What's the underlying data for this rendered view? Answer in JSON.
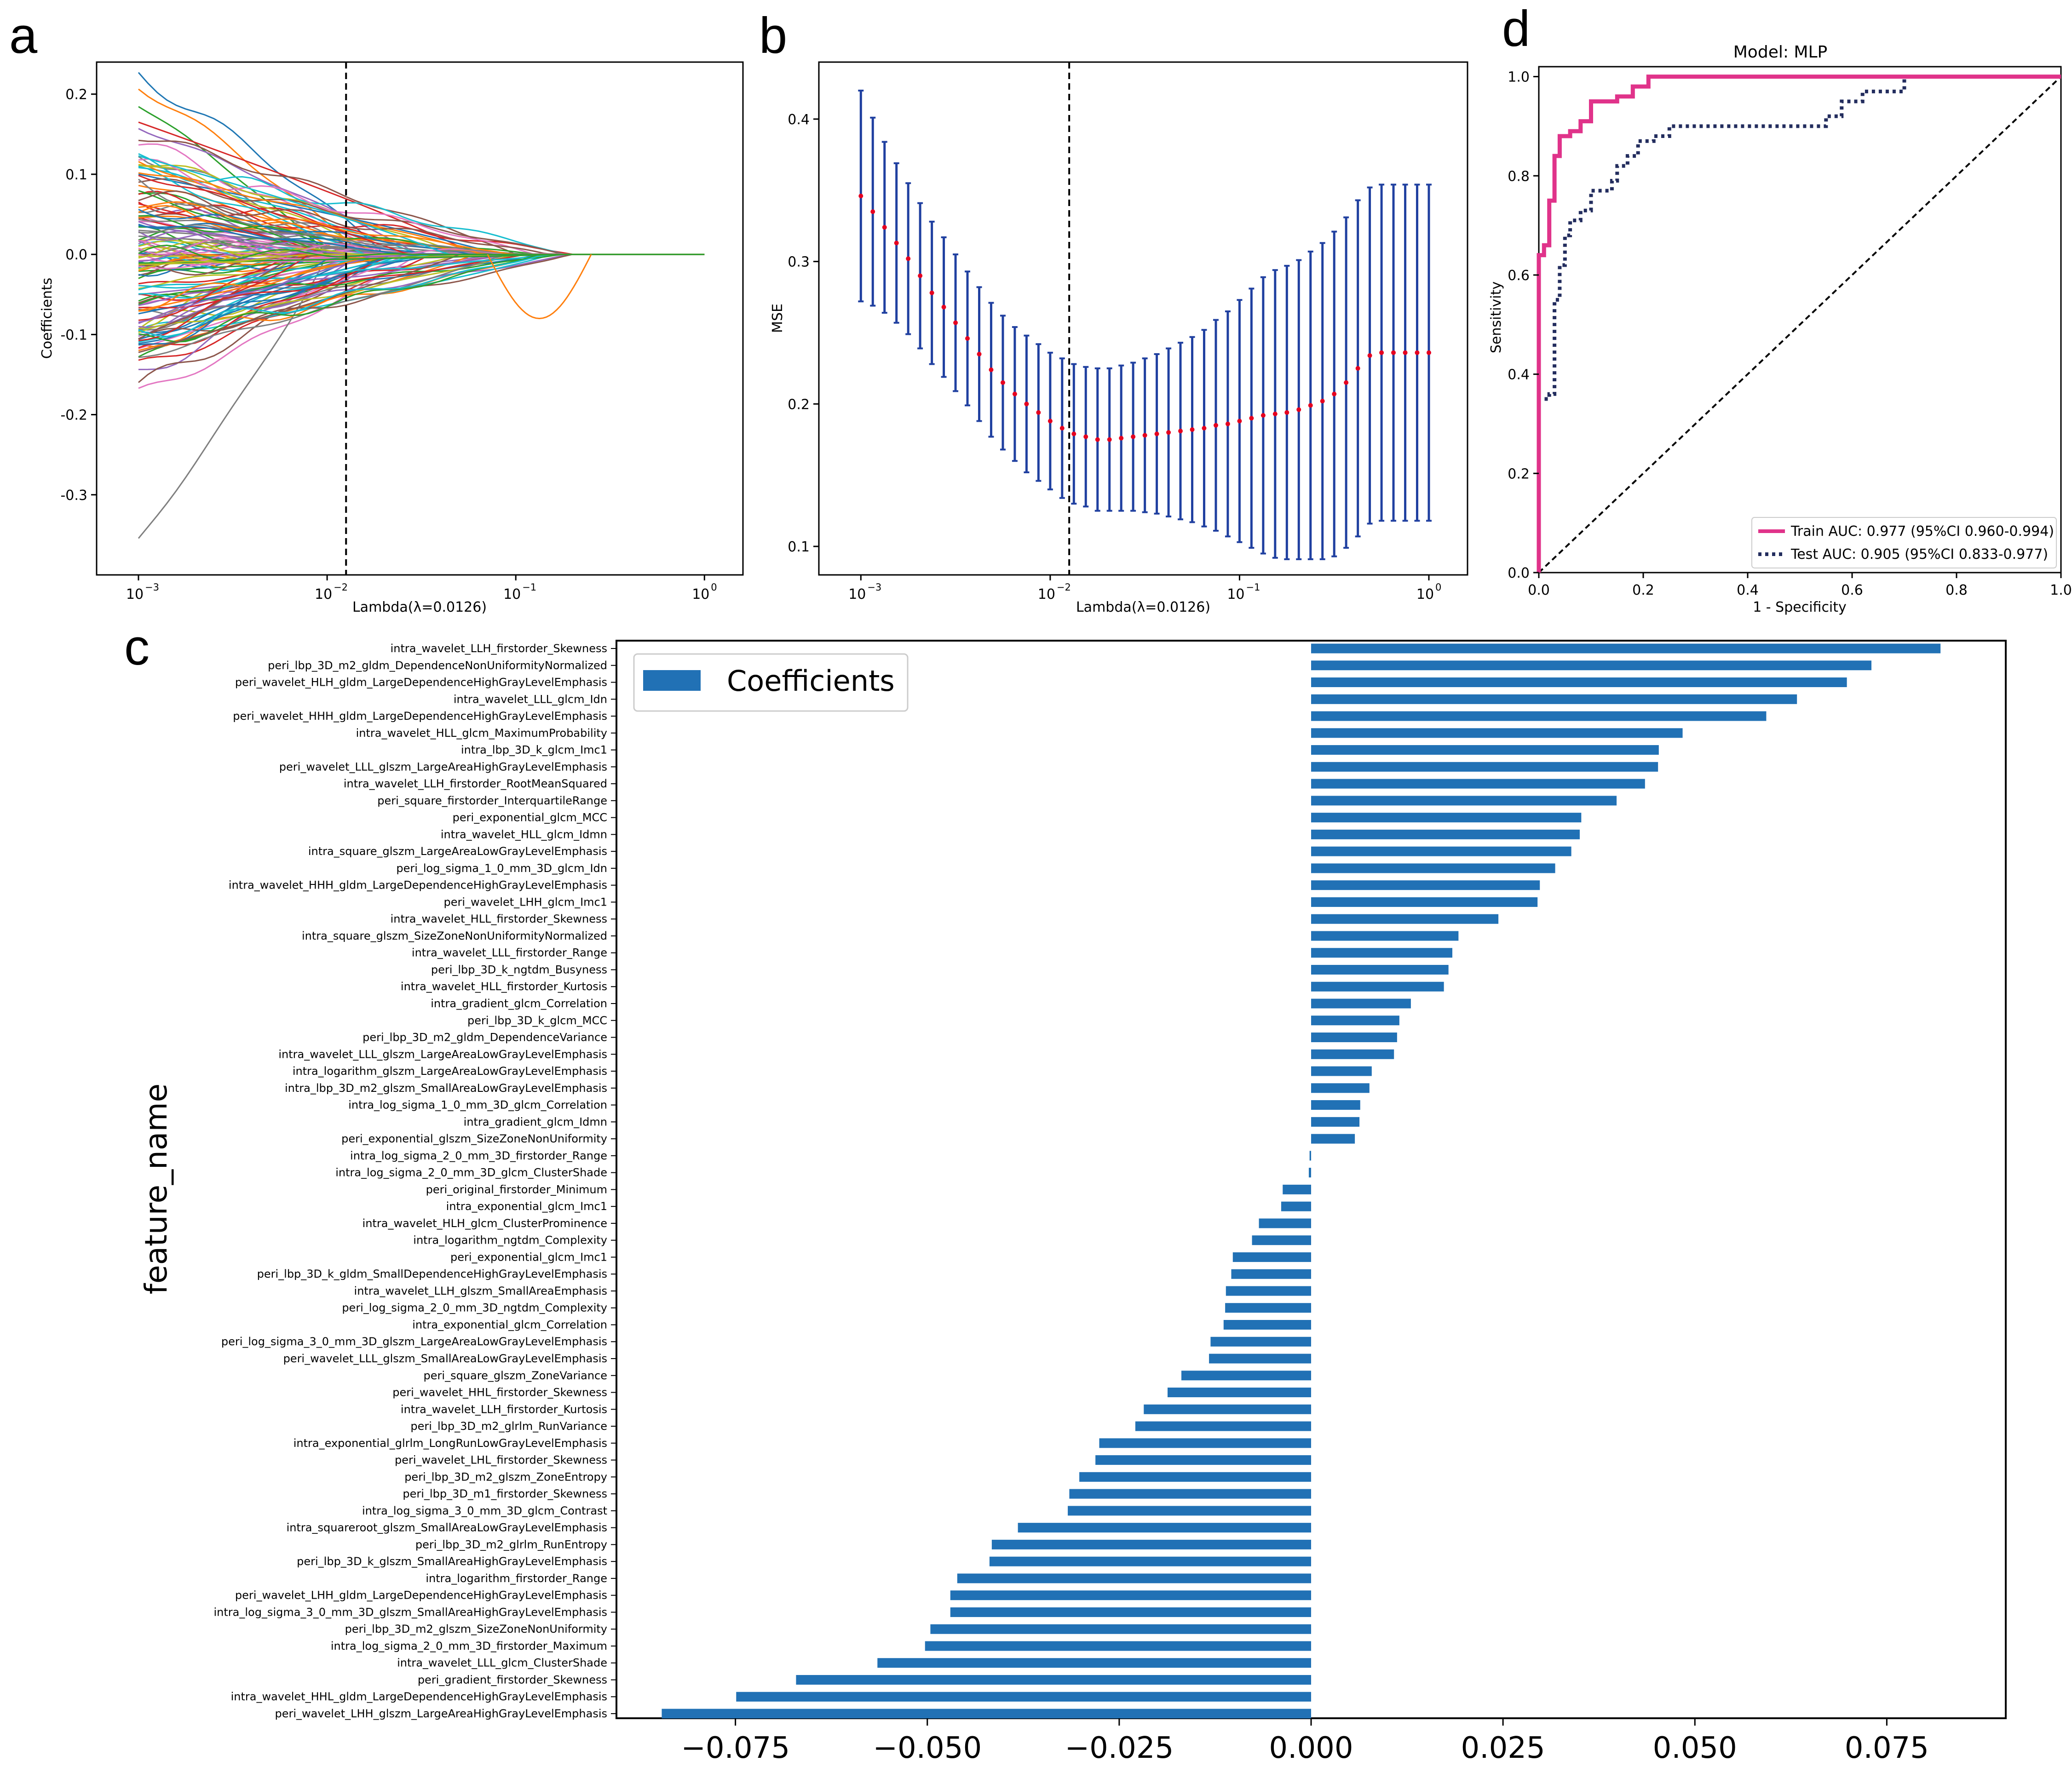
{
  "panel_labels": {
    "a": "a",
    "b": "b",
    "c": "c",
    "d": "d"
  },
  "colors": {
    "bar": "#2171b5",
    "train": "#e0338a",
    "test": "#232d5e",
    "errorbar": "#2040a0",
    "point": "#e6001f"
  },
  "chart_data": [
    {
      "id": "a",
      "type": "line",
      "title": "",
      "xlabel": "Lambda(λ=0.0126)",
      "ylabel": "Coefficients",
      "xscale": "log",
      "xlim": [
        0.0006,
        1.6
      ],
      "ylim": [
        -0.4,
        0.24
      ],
      "x_ticks": [
        {
          "v": 0.001,
          "b": "10",
          "e": "−3"
        },
        {
          "v": 0.01,
          "b": "10",
          "e": "−2"
        },
        {
          "v": 0.1,
          "b": "10",
          "e": "−1"
        },
        {
          "v": 1,
          "b": "10",
          "e": "0"
        }
      ],
      "y_ticks": [
        {
          "v": 0.2,
          "label": "0.2"
        },
        {
          "v": 0.1,
          "label": "0.1"
        },
        {
          "v": 0.0,
          "label": "0.0"
        },
        {
          "v": -0.1,
          "label": "-0.1"
        },
        {
          "v": -0.2,
          "label": "-0.2"
        },
        {
          "v": -0.3,
          "label": "-0.3"
        }
      ],
      "vline": 0.0126,
      "note": "coefficient paths for ~130 features shrinking to zero; first values listed, all reach 0 near lambda 0.1-0.25",
      "series": [
        {
          "start": 0.227,
          "zero": 0.02
        },
        {
          "start": 0.213,
          "zero": 0.015
        },
        {
          "start": 0.188,
          "zero": 0.01
        },
        {
          "start": 0.165,
          "zero": 0.06
        },
        {
          "start": 0.16,
          "zero": 0.03
        },
        {
          "start": 0.15,
          "zero": 0.1
        },
        {
          "start": 0.14,
          "zero": 0.02
        },
        {
          "start": 0.13,
          "zero": 0.015
        },
        {
          "start": 0.12,
          "zero": 0.05
        },
        {
          "start": 0.11,
          "zero": 0.03
        },
        {
          "start": 0.1,
          "zero": 0.08
        },
        {
          "start": 0.09,
          "zero": 0.02
        },
        {
          "start": 0.08,
          "zero": 0.013
        },
        {
          "start": 0.07,
          "zero": 0.2
        },
        {
          "start": 0.06,
          "zero": 0.02
        },
        {
          "start": 0.05,
          "zero": 0.03
        },
        {
          "start": 0.04,
          "zero": 0.01
        },
        {
          "start": 0.03,
          "zero": 0.06
        },
        {
          "start": 0.02,
          "zero": 0.015
        },
        {
          "start": 0.01,
          "zero": 0.025
        },
        {
          "start": -0.01,
          "zero": 0.02
        },
        {
          "start": -0.02,
          "zero": 0.04
        },
        {
          "start": -0.03,
          "zero": 0.012
        },
        {
          "start": -0.04,
          "zero": 0.025
        },
        {
          "start": -0.05,
          "zero": 0.08
        },
        {
          "start": -0.06,
          "zero": 0.02
        },
        {
          "start": -0.07,
          "zero": 0.015
        },
        {
          "start": -0.08,
          "zero": 0.03
        },
        {
          "start": -0.09,
          "zero": 0.05
        },
        {
          "start": -0.1,
          "zero": 0.025
        },
        {
          "start": -0.11,
          "zero": 0.015
        },
        {
          "start": -0.12,
          "zero": 0.06
        },
        {
          "start": -0.13,
          "zero": 0.02
        },
        {
          "start": -0.14,
          "zero": 0.035
        },
        {
          "start": -0.15,
          "zero": 0.015
        },
        {
          "start": -0.165,
          "zero": 0.02
        },
        {
          "start": -0.175,
          "zero": 0.03
        },
        {
          "start": -0.357,
          "zero": 0.01
        }
      ]
    },
    {
      "id": "b",
      "type": "scatter",
      "title": "",
      "xlabel": "Lambda(λ=0.0126)",
      "ylabel": "MSE",
      "xscale": "log",
      "xlim": [
        0.0006,
        1.6
      ],
      "ylim": [
        0.08,
        0.44
      ],
      "x_ticks": [
        {
          "v": 0.001,
          "b": "10",
          "e": "−3"
        },
        {
          "v": 0.01,
          "b": "10",
          "e": "−2"
        },
        {
          "v": 0.1,
          "b": "10",
          "e": "−1"
        },
        {
          "v": 1,
          "b": "10",
          "e": "0"
        }
      ],
      "y_ticks": [
        {
          "v": 0.4,
          "label": "0.4"
        },
        {
          "v": 0.3,
          "label": "0.3"
        },
        {
          "v": 0.2,
          "label": "0.2"
        },
        {
          "v": 0.1,
          "label": "0.1"
        }
      ],
      "vline": 0.0126,
      "log_lambda": [
        -3.0,
        -2.937,
        -2.875,
        -2.812,
        -2.75,
        -2.687,
        -2.625,
        -2.562,
        -2.5,
        -2.437,
        -2.375,
        -2.312,
        -2.25,
        -2.187,
        -2.125,
        -2.062,
        -2.0,
        -1.937,
        -1.875,
        -1.812,
        -1.75,
        -1.687,
        -1.625,
        -1.562,
        -1.5,
        -1.437,
        -1.375,
        -1.312,
        -1.25,
        -1.187,
        -1.125,
        -1.062,
        -1.0,
        -0.937,
        -0.875,
        -0.812,
        -0.75,
        -0.687,
        -0.625,
        -0.562,
        -0.5,
        -0.437,
        -0.375,
        -0.312,
        -0.25,
        -0.187,
        -0.125,
        -0.062,
        0.0
      ],
      "mse": [
        0.346,
        0.335,
        0.324,
        0.313,
        0.302,
        0.29,
        0.278,
        0.268,
        0.257,
        0.246,
        0.235,
        0.224,
        0.215,
        0.207,
        0.2,
        0.194,
        0.188,
        0.183,
        0.179,
        0.177,
        0.175,
        0.175,
        0.176,
        0.177,
        0.178,
        0.179,
        0.18,
        0.181,
        0.182,
        0.183,
        0.185,
        0.186,
        0.188,
        0.19,
        0.192,
        0.193,
        0.194,
        0.196,
        0.199,
        0.202,
        0.207,
        0.215,
        0.225,
        0.234,
        0.236,
        0.236,
        0.236,
        0.236,
        0.236
      ],
      "err": [
        0.074,
        0.066,
        0.06,
        0.056,
        0.053,
        0.051,
        0.05,
        0.049,
        0.048,
        0.047,
        0.047,
        0.047,
        0.047,
        0.047,
        0.048,
        0.048,
        0.048,
        0.049,
        0.049,
        0.049,
        0.05,
        0.05,
        0.051,
        0.052,
        0.054,
        0.056,
        0.059,
        0.062,
        0.065,
        0.069,
        0.074,
        0.079,
        0.085,
        0.091,
        0.097,
        0.101,
        0.103,
        0.105,
        0.108,
        0.111,
        0.114,
        0.116,
        0.118,
        0.118,
        0.118,
        0.118,
        0.118,
        0.118,
        0.118
      ]
    },
    {
      "id": "c",
      "type": "bar",
      "orientation": "horizontal",
      "ylabel": "feature_name",
      "legend": "Coefficients",
      "xlim": [
        -0.0905,
        0.0905
      ],
      "x_ticks": [
        {
          "v": -0.075,
          "label": "−0.075"
        },
        {
          "v": -0.05,
          "label": "−0.050"
        },
        {
          "v": -0.025,
          "label": "−0.025"
        },
        {
          "v": 0.0,
          "label": "0.000"
        },
        {
          "v": 0.025,
          "label": "0.025"
        },
        {
          "v": 0.05,
          "label": "0.050"
        },
        {
          "v": 0.075,
          "label": "0.075"
        }
      ],
      "categories": [
        "intra_wavelet_LLH_firstorder_Skewness",
        "peri_lbp_3D_m2_gldm_DependenceNonUniformityNormalized",
        "peri_wavelet_HLH_gldm_LargeDependenceHighGrayLevelEmphasis",
        "intra_wavelet_LLL_glcm_Idn",
        "peri_wavelet_HHH_gldm_LargeDependenceHighGrayLevelEmphasis",
        "intra_wavelet_HLL_glcm_MaximumProbability",
        "intra_lbp_3D_k_glcm_Imc1",
        "peri_wavelet_LLL_glszm_LargeAreaHighGrayLevelEmphasis",
        "intra_wavelet_LLH_firstorder_RootMeanSquared",
        "peri_square_firstorder_InterquartileRange",
        "peri_exponential_glcm_MCC",
        "intra_wavelet_HLL_glcm_Idmn",
        "intra_square_glszm_LargeAreaLowGrayLevelEmphasis",
        "peri_log_sigma_1_0_mm_3D_glcm_Idn",
        "intra_wavelet_HHH_gldm_LargeDependenceHighGrayLevelEmphasis",
        "peri_wavelet_LHH_glcm_Imc1",
        "intra_wavelet_HLL_firstorder_Skewness",
        "intra_square_glszm_SizeZoneNonUniformityNormalized",
        "intra_wavelet_LLL_firstorder_Range",
        "peri_lbp_3D_k_ngtdm_Busyness",
        "intra_wavelet_HLL_firstorder_Kurtosis",
        "intra_gradient_glcm_Correlation",
        "peri_lbp_3D_k_glcm_MCC",
        "peri_lbp_3D_m2_gldm_DependenceVariance",
        "intra_wavelet_LLL_glszm_LargeAreaLowGrayLevelEmphasis",
        "intra_logarithm_glszm_LargeAreaLowGrayLevelEmphasis",
        "intra_lbp_3D_m2_glszm_SmallAreaLowGrayLevelEmphasis",
        "intra_log_sigma_1_0_mm_3D_glcm_Correlation",
        "intra_gradient_glcm_Idmn",
        "peri_exponential_glszm_SizeZoneNonUniformity",
        "intra_log_sigma_2_0_mm_3D_firstorder_Range",
        "intra_log_sigma_2_0_mm_3D_glcm_ClusterShade",
        "peri_original_firstorder_Minimum",
        "intra_exponential_glcm_Imc1",
        "intra_wavelet_HLH_glcm_ClusterProminence",
        "intra_logarithm_ngtdm_Complexity",
        "peri_exponential_glcm_Imc1",
        "peri_lbp_3D_k_gldm_SmallDependenceHighGrayLevelEmphasis",
        "intra_wavelet_LLH_glszm_SmallAreaEmphasis",
        "peri_log_sigma_2_0_mm_3D_ngtdm_Complexity",
        "intra_exponential_glcm_Correlation",
        "peri_log_sigma_3_0_mm_3D_glszm_LargeAreaLowGrayLevelEmphasis",
        "peri_wavelet_LLL_glszm_SmallAreaLowGrayLevelEmphasis",
        "peri_square_glszm_ZoneVariance",
        "peri_wavelet_HHL_firstorder_Skewness",
        "intra_wavelet_LLH_firstorder_Kurtosis",
        "peri_lbp_3D_m2_glrlm_RunVariance",
        "intra_exponential_glrlm_LongRunLowGrayLevelEmphasis",
        "peri_wavelet_LHL_firstorder_Skewness",
        "peri_lbp_3D_m2_glszm_ZoneEntropy",
        "peri_lbp_3D_m1_firstorder_Skewness",
        "intra_log_sigma_3_0_mm_3D_glcm_Contrast",
        "intra_squareroot_glszm_SmallAreaLowGrayLevelEmphasis",
        "peri_lbp_3D_m2_glrlm_RunEntropy",
        "peri_lbp_3D_k_glszm_SmallAreaHighGrayLevelEmphasis",
        "intra_logarithm_firstorder_Range",
        "peri_wavelet_LHH_gldm_LargeDependenceHighGrayLevelEmphasis",
        "intra_log_sigma_3_0_mm_3D_glszm_SmallAreaHighGrayLevelEmphasis",
        "peri_lbp_3D_m2_glszm_SizeZoneNonUniformity",
        "intra_log_sigma_2_0_mm_3D_firstorder_Maximum",
        "intra_wavelet_LLL_glcm_ClusterShade",
        "peri_gradient_firstorder_Skewness",
        "intra_wavelet_HHL_gldm_LargeDependenceHighGrayLevelEmphasis",
        "peri_wavelet_LHH_glszm_LargeAreaHighGrayLevelEmphasis"
      ],
      "values": [
        0.082,
        0.073,
        0.0698,
        0.0633,
        0.0593,
        0.0484,
        0.0453,
        0.0452,
        0.0435,
        0.0398,
        0.0352,
        0.035,
        0.0339,
        0.0318,
        0.0298,
        0.0295,
        0.0244,
        0.0192,
        0.0184,
        0.0179,
        0.0173,
        0.013,
        0.0115,
        0.0112,
        0.0108,
        0.0079,
        0.0076,
        0.0064,
        0.0063,
        0.0057,
        -0.0002,
        -0.0003,
        -0.0037,
        -0.0039,
        -0.0068,
        -0.0077,
        -0.0102,
        -0.0104,
        -0.0111,
        -0.0112,
        -0.0114,
        -0.0131,
        -0.0133,
        -0.0169,
        -0.0187,
        -0.0218,
        -0.0229,
        -0.0276,
        -0.0281,
        -0.0302,
        -0.0315,
        -0.0317,
        -0.0382,
        -0.0416,
        -0.0419,
        -0.0461,
        -0.047,
        -0.047,
        -0.0496,
        -0.0503,
        -0.0565,
        -0.0671,
        -0.0749,
        -0.0846
      ]
    },
    {
      "id": "d",
      "type": "line",
      "title": "Model: MLP",
      "xlabel": "1 - Specificity",
      "ylabel": "Sensitivity",
      "xlim": [
        0,
        1
      ],
      "ylim": [
        0,
        1.02
      ],
      "x_ticks": [
        {
          "v": 0.0,
          "label": "0.0"
        },
        {
          "v": 0.2,
          "label": "0.2"
        },
        {
          "v": 0.4,
          "label": "0.4"
        },
        {
          "v": 0.6,
          "label": "0.6"
        },
        {
          "v": 0.8,
          "label": "0.8"
        },
        {
          "v": 1.0,
          "label": "1.0"
        }
      ],
      "y_ticks": [
        {
          "v": 0.0,
          "label": "0.0"
        },
        {
          "v": 0.2,
          "label": "0.2"
        },
        {
          "v": 0.4,
          "label": "0.4"
        },
        {
          "v": 0.6,
          "label": "0.6"
        },
        {
          "v": 0.8,
          "label": "0.8"
        },
        {
          "v": 1.0,
          "label": "1.0"
        }
      ],
      "series": [
        {
          "name": "Train AUC: 0.977 (95%CI 0.960-0.994)",
          "x": [
            0,
            0,
            0.01,
            0.01,
            0.02,
            0.02,
            0.03,
            0.03,
            0.04,
            0.04,
            0.06,
            0.06,
            0.08,
            0.08,
            0.1,
            0.1,
            0.15,
            0.15,
            0.18,
            0.18,
            0.21,
            0.21,
            1.0
          ],
          "y": [
            0,
            0.64,
            0.64,
            0.66,
            0.66,
            0.75,
            0.75,
            0.84,
            0.84,
            0.88,
            0.88,
            0.89,
            0.89,
            0.91,
            0.91,
            0.95,
            0.95,
            0.96,
            0.96,
            0.98,
            0.98,
            1.0,
            1.0
          ]
        },
        {
          "name": "Test AUC: 0.905 (95%CI 0.833-0.977)",
          "x": [
            0,
            0,
            0.02,
            0.02,
            0.03,
            0.03,
            0.04,
            0.04,
            0.05,
            0.05,
            0.06,
            0.06,
            0.08,
            0.08,
            0.1,
            0.1,
            0.14,
            0.14,
            0.15,
            0.15,
            0.17,
            0.17,
            0.19,
            0.19,
            0.22,
            0.22,
            0.25,
            0.25,
            0.55,
            0.55,
            0.58,
            0.58,
            0.62,
            0.62,
            0.7,
            0.7,
            1.0
          ],
          "y": [
            0,
            0.35,
            0.35,
            0.36,
            0.36,
            0.55,
            0.55,
            0.62,
            0.62,
            0.68,
            0.68,
            0.71,
            0.71,
            0.73,
            0.73,
            0.77,
            0.77,
            0.79,
            0.79,
            0.82,
            0.82,
            0.84,
            0.84,
            0.87,
            0.87,
            0.88,
            0.88,
            0.9,
            0.9,
            0.92,
            0.92,
            0.95,
            0.95,
            0.97,
            0.97,
            1.0,
            1.0
          ]
        },
        {
          "name": "chance",
          "x": [
            0,
            1
          ],
          "y": [
            0,
            1
          ]
        }
      ]
    }
  ]
}
